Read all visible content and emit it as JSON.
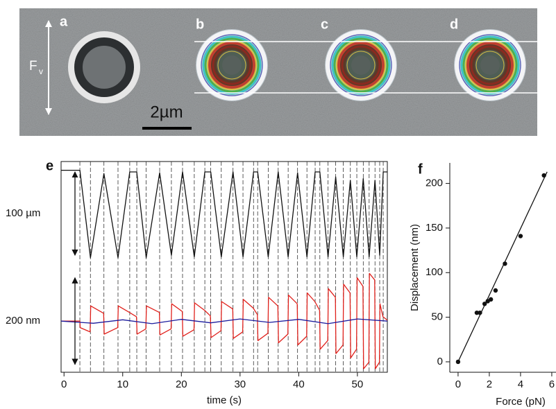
{
  "image": {
    "labels": [
      "a",
      "b",
      "c",
      "d"
    ],
    "force": "F",
    "force_sub": "v",
    "scale_bar": "2µm"
  },
  "chart_data": [
    {
      "type": "line",
      "panel": "e",
      "xlim": [
        -0.5,
        55.1
      ],
      "ylim": [
        -64,
        62.5
      ],
      "scale_bar": {
        "label": "100 µm",
        "value": 100
      },
      "series": [
        {
          "color": "#111111",
          "x": [
            -0.5,
            2.7,
            4.5,
            6.8,
            9.2,
            11.2,
            12.4,
            14.0,
            16.3,
            18.3,
            20.2,
            22.2,
            24.0,
            25.0,
            26.8,
            28.8,
            30.5,
            32.3,
            33.0,
            34.8,
            36.5,
            38.2,
            39.8,
            41.4,
            42.8,
            43.6,
            45.0,
            46.3,
            47.6,
            48.8,
            49.9,
            51.0,
            52.0,
            53.0,
            53.8,
            54.4,
            55.1
          ],
          "values": [
            52,
            52,
            -53,
            48,
            -53,
            50,
            50,
            -53,
            49,
            -50,
            50,
            -52,
            50,
            50,
            -52,
            50,
            -52,
            50,
            50,
            -52,
            50,
            -52,
            49,
            -52,
            50,
            50,
            -52,
            44,
            -52,
            40,
            -52,
            42,
            -52,
            40,
            -50,
            50,
            50
          ]
        }
      ]
    },
    {
      "type": "line",
      "xlim": [
        -0.5,
        55.1
      ],
      "ylim": [
        -118,
        125
      ],
      "xticks": [
        0,
        10,
        20,
        30,
        40,
        50
      ],
      "xlabel": "time (s)",
      "scale_bar": {
        "label": "200 nm",
        "value": 200
      },
      "series": [
        {
          "color": "#e0201b",
          "x": [
            -0.5,
            2.7,
            2.75,
            4.45,
            4.55,
            6.75,
            6.85,
            9.15,
            9.25,
            11.15,
            12.35,
            12.45,
            13.95,
            14.05,
            16.25,
            16.35,
            18.25,
            18.35,
            20.15,
            20.25,
            22.15,
            22.25,
            23.95,
            24.95,
            25.05,
            26.75,
            26.85,
            28.75,
            28.85,
            30.45,
            30.55,
            32.25,
            32.95,
            33.05,
            34.75,
            34.85,
            36.45,
            36.55,
            38.15,
            38.25,
            39.75,
            39.85,
            41.35,
            41.45,
            42.75,
            43.55,
            43.65,
            44.95,
            45.05,
            46.25,
            46.35,
            47.55,
            47.65,
            48.75,
            48.85,
            49.85,
            49.95,
            50.95,
            51.05,
            51.95,
            52.05,
            52.95,
            53.05,
            53.75,
            53.85,
            54.35,
            55.1
          ],
          "values": [
            0,
            0,
            -15,
            -25,
            35,
            18,
            -30,
            -15,
            35,
            20,
            10,
            -30,
            -18,
            35,
            20,
            -32,
            -18,
            40,
            22,
            -35,
            -20,
            42,
            25,
            12,
            -38,
            -22,
            45,
            28,
            -40,
            -25,
            50,
            30,
            15,
            -45,
            -28,
            55,
            35,
            -50,
            -30,
            60,
            40,
            -55,
            -35,
            65,
            45,
            25,
            -65,
            -45,
            75,
            55,
            -75,
            -55,
            85,
            65,
            -85,
            -65,
            100,
            80,
            -110,
            -95,
            110,
            95,
            -110,
            -95,
            40,
            10,
            2
          ]
        },
        {
          "color": "#1a1a9c",
          "x": [
            -0.5,
            5,
            10,
            15,
            20,
            25,
            30,
            35,
            40,
            45,
            50,
            55.1
          ],
          "values": [
            0,
            -5,
            3,
            -6,
            4,
            -4,
            5,
            -3,
            4,
            -6,
            5,
            0
          ]
        }
      ]
    },
    {
      "type": "scatter",
      "panel": "f",
      "xlim": [
        -0.53,
        6.27
      ],
      "ylim": [
        -11.7,
        223
      ],
      "xticks": [
        0,
        2,
        4,
        6
      ],
      "yticks": [
        0,
        50,
        100,
        150,
        200
      ],
      "xlabel": "Force (pN)",
      "ylabel": "Displacement (nm)",
      "color": "#111111",
      "x": [
        0,
        1.2,
        1.4,
        1.7,
        1.9,
        2.1,
        2.4,
        3.0,
        4.0,
        5.5
      ],
      "values": [
        0,
        55,
        55,
        65,
        68,
        70,
        80,
        110,
        141,
        209
      ],
      "fit": {
        "x": [
          0,
          5.7
        ],
        "values": [
          0,
          213
        ]
      }
    }
  ]
}
